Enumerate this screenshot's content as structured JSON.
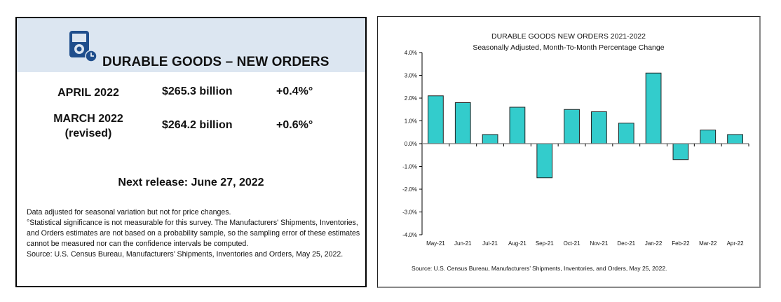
{
  "summary": {
    "title": "DURABLE GOODS – NEW ORDERS",
    "icon": "device-clock-icon",
    "rows": [
      {
        "period": "APRIL 2022",
        "period_note": "",
        "value": "$265.3 billion",
        "change": "+0.4%°"
      },
      {
        "period": "MARCH 2022",
        "period_note": "(revised)",
        "value": "$264.2 billion",
        "change": "+0.6%°"
      }
    ],
    "next_release": "Next release: June 27, 2022",
    "footnotes": [
      "Data adjusted for seasonal variation but not for price changes.",
      "°Statistical significance is not measurable for this survey.  The Manufacturers' Shipments, Inventories, and Orders estimates are not based on a probability sample, so the sampling error of these estimates cannot be measured nor can the confidence intervals be computed.",
      "Source: U.S. Census Bureau, Manufacturers’ Shipments, Inventories and Orders, May 25, 2022."
    ],
    "colors": {
      "header_bg": "#dce6f1",
      "icon": "#1f4e8c"
    }
  },
  "chart_data": {
    "type": "bar",
    "title": "DURABLE GOODS NEW ORDERS 2021-2022",
    "subtitle": "Seasonally Adjusted,  Month-To-Month Percentage Change",
    "categories": [
      "May-21",
      "Jun-21",
      "Jul-21",
      "Aug-21",
      "Sep-21",
      "Oct-21",
      "Nov-21",
      "Dec-21",
      "Jan-22",
      "Feb-22",
      "Mar-22",
      "Apr-22"
    ],
    "values": [
      2.1,
      1.8,
      0.4,
      1.6,
      -1.5,
      1.5,
      1.4,
      0.9,
      3.1,
      -0.7,
      0.6,
      0.4
    ],
    "xlabel": "",
    "ylabel": "",
    "ylim": [
      -4.0,
      4.0
    ],
    "yticks": [
      4.0,
      3.0,
      2.0,
      1.0,
      0.0,
      -1.0,
      -2.0,
      -3.0,
      -4.0
    ],
    "ytick_labels": [
      "4.0%",
      "3.0%",
      "2.0%",
      "1.0%",
      "0.0%",
      "-1.0%",
      "-2.0%",
      "-3.0%",
      "-4.0%"
    ],
    "grid": false,
    "legend": "none",
    "bar_color": "#33cccc",
    "source": "Source: U.S. Census Bureau, Manufacturers’ Shipments, Inventories, and Orders, May 25, 2022."
  }
}
